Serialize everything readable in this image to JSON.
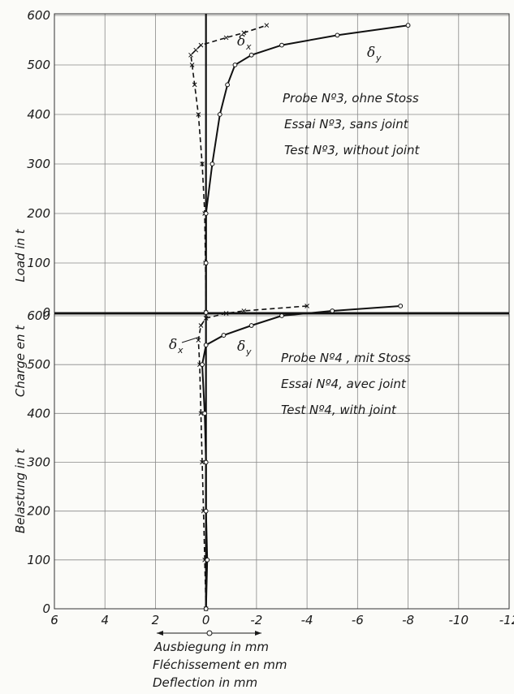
{
  "chart_data": [
    {
      "type": "line",
      "panel": "upper",
      "annotation": [
        "Probe Nº3, ohne Stoss",
        "Essai Nº3, sans joint",
        "Test Nº3, without joint"
      ],
      "xlim": [
        6,
        -12
      ],
      "ylim": [
        0,
        600
      ],
      "y_ticks": [
        "0",
        "100",
        "200",
        "300",
        "400",
        "500",
        "600"
      ],
      "grid": true,
      "series": [
        {
          "name": "δx",
          "label_main": "δ",
          "label_sub": "x",
          "style": "dashed",
          "marker": "x",
          "points": [
            [
              0,
              0
            ],
            [
              0.02,
              100
            ],
            [
              0.05,
              200
            ],
            [
              0.15,
              300
            ],
            [
              0.3,
              400
            ],
            [
              0.45,
              460
            ],
            [
              0.55,
              500
            ],
            [
              0.6,
              520
            ],
            [
              0.4,
              530
            ],
            [
              0.2,
              540
            ],
            [
              -0.8,
              555
            ],
            [
              -1.5,
              565
            ],
            [
              -2.4,
              580
            ]
          ]
        },
        {
          "name": "δy",
          "label_main": "δ",
          "label_sub": "y",
          "style": "solid",
          "marker": "o",
          "points": [
            [
              0,
              0
            ],
            [
              0,
              100
            ],
            [
              0,
              200
            ],
            [
              -0.25,
              300
            ],
            [
              -0.55,
              400
            ],
            [
              -0.85,
              460
            ],
            [
              -1.15,
              500
            ],
            [
              -1.8,
              520
            ],
            [
              -3,
              540
            ],
            [
              -5.2,
              560
            ],
            [
              -8,
              580
            ]
          ]
        }
      ]
    },
    {
      "type": "line",
      "panel": "lower",
      "annotation": [
        "Probe Nº4 , mit Stoss",
        "Essai Nº4, avec joint",
        "Test Nº4, with joint"
      ],
      "xlim": [
        6,
        -12
      ],
      "ylim": [
        0,
        600
      ],
      "y_ticks": [
        "0",
        "100",
        "200",
        "300",
        "400",
        "500",
        "600"
      ],
      "grid": true,
      "series": [
        {
          "name": "δx",
          "label_main": "δ",
          "label_sub": "x",
          "style": "dashed",
          "marker": "x",
          "points": [
            [
              0,
              0
            ],
            [
              0.05,
              100
            ],
            [
              0.1,
              200
            ],
            [
              0.15,
              300
            ],
            [
              0.2,
              400
            ],
            [
              0.25,
              500
            ],
            [
              0.3,
              550
            ],
            [
              0.2,
              580
            ],
            [
              0,
              595
            ],
            [
              -0.8,
              605
            ],
            [
              -1.5,
              610
            ],
            [
              -4,
              620
            ]
          ]
        },
        {
          "name": "δy",
          "label_main": "δ",
          "label_sub": "y",
          "style": "solid",
          "marker": "o",
          "points": [
            [
              0,
              0
            ],
            [
              -0.05,
              100
            ],
            [
              0,
              200
            ],
            [
              0,
              300
            ],
            [
              0.05,
              400
            ],
            [
              0.15,
              500
            ],
            [
              0,
              540
            ],
            [
              -0.7,
              560
            ],
            [
              -1.8,
              580
            ],
            [
              -3,
              600
            ],
            [
              -5,
              610
            ],
            [
              -7.7,
              620
            ]
          ]
        }
      ]
    }
  ],
  "x_axis": {
    "ticks": [
      "6",
      "4",
      "2",
      "0",
      "-2",
      "-4",
      "-6",
      "-8",
      "-10",
      "-12"
    ],
    "label_lines": [
      "Ausbiegung in mm",
      "Fléchissement en mm",
      "Deflection in mm"
    ]
  },
  "y_axis": {
    "label_lines": [
      "Load in t",
      "Charge en t",
      "Belastung in t"
    ]
  }
}
